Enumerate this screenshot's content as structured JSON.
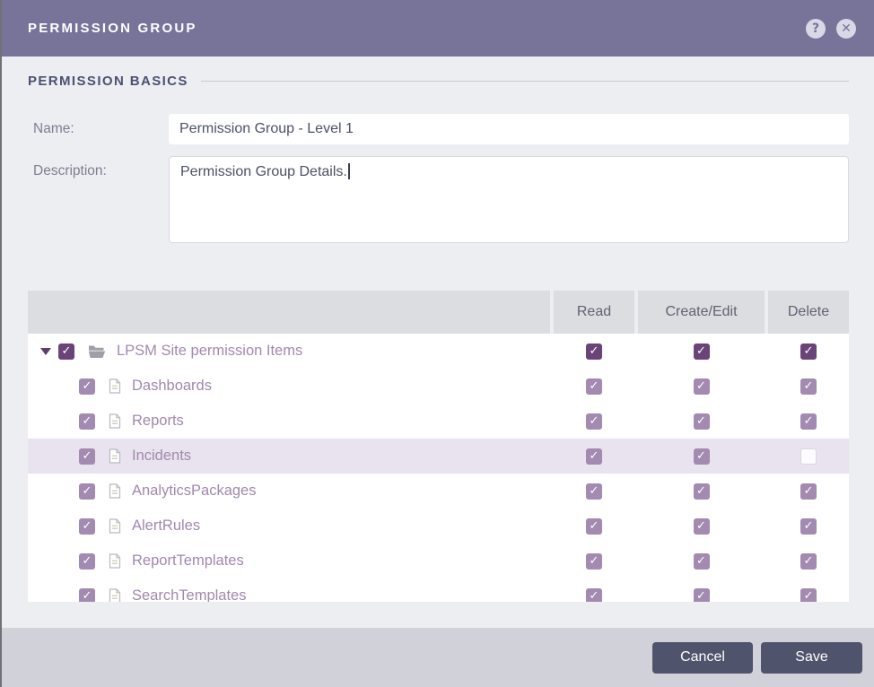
{
  "header": {
    "title": "PERMISSION GROUP"
  },
  "titlebar_icons": {
    "help": "?",
    "close": "✕"
  },
  "section": {
    "title": "PERMISSION BASICS"
  },
  "form": {
    "name_label": "Name:",
    "name_value": "Permission Group - Level 1",
    "description_label": "Description:",
    "description_value": "Permission Group Details."
  },
  "table": {
    "columns": [
      "Read",
      "Create/Edit",
      "Delete"
    ],
    "rows": [
      {
        "label": "LPSM Site permission Items",
        "type": "folder",
        "level": 0,
        "expanded": true,
        "highlighted": false,
        "checked": true,
        "read": true,
        "create_edit": true,
        "delete": true
      },
      {
        "label": "Dashboards",
        "type": "file",
        "level": 1,
        "highlighted": false,
        "checked": true,
        "read": true,
        "create_edit": true,
        "delete": true
      },
      {
        "label": "Reports",
        "type": "file",
        "level": 1,
        "highlighted": false,
        "checked": true,
        "read": true,
        "create_edit": true,
        "delete": true
      },
      {
        "label": "Incidents",
        "type": "file",
        "level": 1,
        "highlighted": true,
        "checked": true,
        "read": true,
        "create_edit": true,
        "delete": false
      },
      {
        "label": "AnalyticsPackages",
        "type": "file",
        "level": 1,
        "highlighted": false,
        "checked": true,
        "read": true,
        "create_edit": true,
        "delete": true
      },
      {
        "label": "AlertRules",
        "type": "file",
        "level": 1,
        "highlighted": false,
        "checked": true,
        "read": true,
        "create_edit": true,
        "delete": true
      },
      {
        "label": "ReportTemplates",
        "type": "file",
        "level": 1,
        "highlighted": false,
        "checked": true,
        "read": true,
        "create_edit": true,
        "delete": true
      },
      {
        "label": "SearchTemplates",
        "type": "file",
        "level": 1,
        "highlighted": false,
        "checked": true,
        "read": true,
        "create_edit": true,
        "delete": true
      }
    ]
  },
  "footer": {
    "cancel_label": "Cancel",
    "save_label": "Save"
  },
  "colors": {
    "titlebar_bg": "#787399",
    "body_bg": "#edeef2",
    "section_title": "#4c5070",
    "table_header_bg": "#dbdde1",
    "row_highlight_bg": "#e8e3ee",
    "tree_label": "#a289ae",
    "checkbox_parent": "#6a4478",
    "checkbox_child": "#a28ab0",
    "footer_bg": "#d1d1d9",
    "button_bg": "#50536c"
  }
}
